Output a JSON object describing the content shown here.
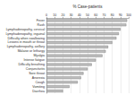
{
  "chart_data": {
    "type": "bar",
    "orientation": "horizontal",
    "x_label": "% Case-patients",
    "categories": [
      "Fever",
      "Rash",
      "Lymphadenopathy, cervical",
      "Lymphadenopathy, inguinal",
      "Difficulty when swallowing",
      "Lesions in mouth or throat",
      "Lymphadenopathy, axillary",
      "Malaise or lethargy",
      "Myalgia",
      "Intense fatigue",
      "Difficulty breathing",
      "Conjunctivitis",
      "Sore throat",
      "Anorexia",
      "Cough",
      "Vomiting",
      "Diarrhea"
    ],
    "values": [
      98,
      97,
      90,
      88,
      85,
      80,
      75,
      72,
      68,
      60,
      55,
      50,
      45,
      42,
      38,
      28,
      20
    ],
    "color": "#bdbdbd",
    "xlim": [
      0,
      100
    ],
    "xticks": [
      0,
      10,
      20,
      30,
      40,
      50,
      60,
      70,
      80,
      90,
      100
    ],
    "grid": true
  }
}
